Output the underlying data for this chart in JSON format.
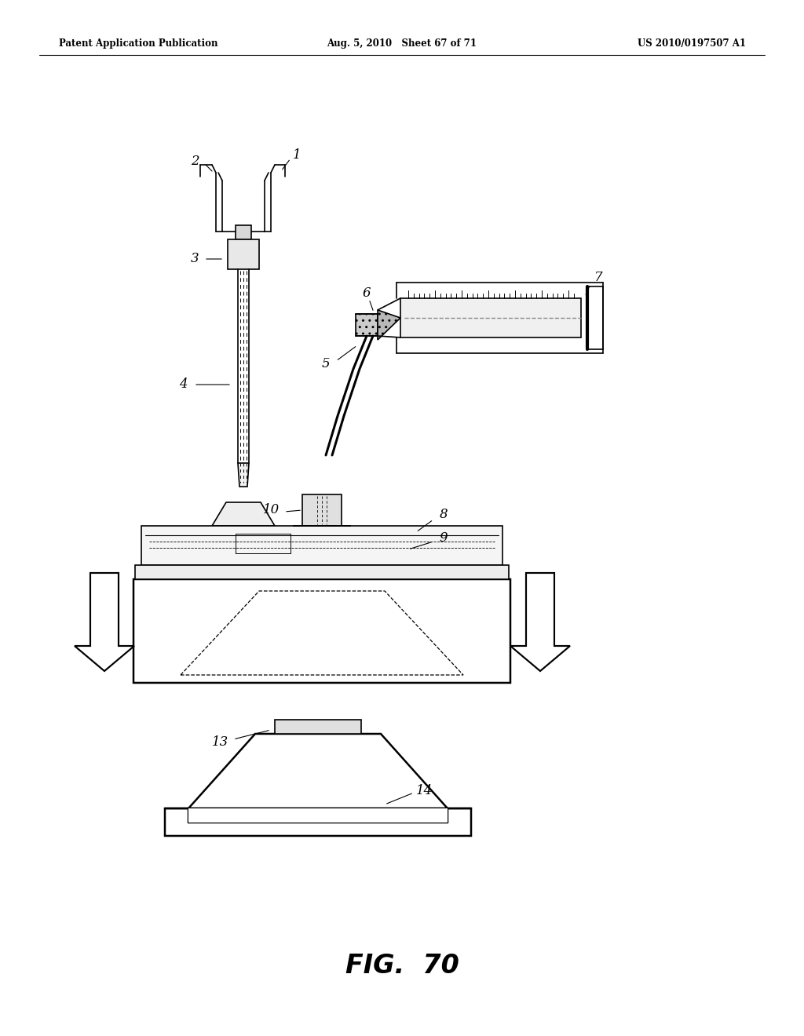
{
  "bg_color": "#ffffff",
  "header_left": "Patent Application Publication",
  "header_mid": "Aug. 5, 2010   Sheet 67 of 71",
  "header_right": "US 2010/0197507 A1",
  "fig_caption": "FIG.  70",
  "line_color": "#000000",
  "lw": 1.2
}
